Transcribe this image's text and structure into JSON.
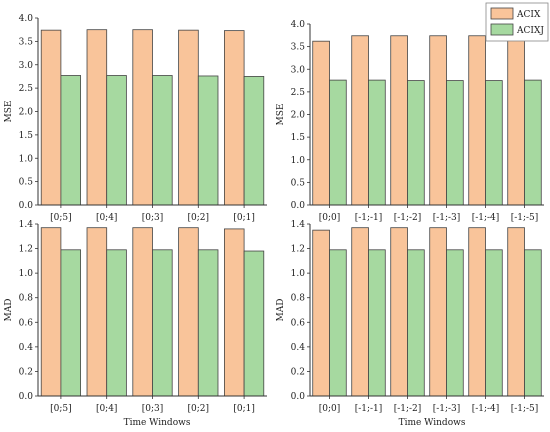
{
  "colors": {
    "ACIX": "#f9c49a",
    "ACIXJ": "#a6d9a0",
    "bar_edge": "#444444",
    "axis": "#333333"
  },
  "legend": [
    "ACIX",
    "ACIXJ"
  ],
  "chart_data": [
    {
      "type": "bar",
      "panel": "top-left",
      "ylabel": "MSE",
      "xlabel": "",
      "ylim": [
        0,
        4.0
      ],
      "yticks": [
        "0.0",
        "0.5",
        "1.0",
        "1.5",
        "2.0",
        "2.5",
        "3.0",
        "3.5",
        "4.0"
      ],
      "ytick_values": [
        0,
        0.5,
        1.0,
        1.5,
        2.0,
        2.5,
        3.0,
        3.5,
        4.0
      ],
      "categories": [
        "[0;5]",
        "[0;4]",
        "[0;3]",
        "[0;2]",
        "[0;1]"
      ],
      "series": [
        {
          "name": "ACIX",
          "values": [
            3.74,
            3.75,
            3.75,
            3.74,
            3.73
          ]
        },
        {
          "name": "ACIXJ",
          "values": [
            2.77,
            2.77,
            2.77,
            2.76,
            2.75
          ]
        }
      ]
    },
    {
      "type": "bar",
      "panel": "top-right",
      "ylabel": "MSE",
      "xlabel": "",
      "ylim": [
        0,
        4.0
      ],
      "yticks": [
        "0.0",
        "0.5",
        "1.0",
        "1.5",
        "2.0",
        "2.5",
        "3.0",
        "3.5",
        "4.0"
      ],
      "ytick_values": [
        0,
        0.5,
        1.0,
        1.5,
        2.0,
        2.5,
        3.0,
        3.5,
        4.0
      ],
      "categories": [
        "[0;0]",
        "[-1;-1]",
        "[-1;-2]",
        "[-1;-3]",
        "[-1;-4]",
        "[-1;-5]"
      ],
      "series": [
        {
          "name": "ACIX",
          "values": [
            3.62,
            3.74,
            3.74,
            3.74,
            3.74,
            3.74
          ]
        },
        {
          "name": "ACIXJ",
          "values": [
            2.76,
            2.76,
            2.75,
            2.75,
            2.75,
            2.76
          ]
        }
      ]
    },
    {
      "type": "bar",
      "panel": "bottom-left",
      "ylabel": "MAD",
      "xlabel": "Time Windows",
      "ylim": [
        0,
        1.4
      ],
      "yticks": [
        "0.0",
        "0.2",
        "0.4",
        "0.6",
        "0.8",
        "1.0",
        "1.2",
        "1.4"
      ],
      "ytick_values": [
        0,
        0.2,
        0.4,
        0.6,
        0.8,
        1.0,
        1.2,
        1.4
      ],
      "categories": [
        "[0;5]",
        "[0;4]",
        "[0;3]",
        "[0;2]",
        "[0;1]"
      ],
      "series": [
        {
          "name": "ACIX",
          "values": [
            1.37,
            1.37,
            1.37,
            1.37,
            1.36
          ]
        },
        {
          "name": "ACIXJ",
          "values": [
            1.19,
            1.19,
            1.19,
            1.19,
            1.18
          ]
        }
      ]
    },
    {
      "type": "bar",
      "panel": "bottom-right",
      "ylabel": "MAD",
      "xlabel": "Time Windows",
      "ylim": [
        0,
        1.4
      ],
      "yticks": [
        "0.0",
        "0.2",
        "0.4",
        "0.6",
        "0.8",
        "1.0",
        "1.2",
        "1.4"
      ],
      "ytick_values": [
        0,
        0.2,
        0.4,
        0.6,
        0.8,
        1.0,
        1.2,
        1.4
      ],
      "categories": [
        "[0;0]",
        "[-1;-1]",
        "[-1;-2]",
        "[-1;-3]",
        "[-1;-4]",
        "[-1;-5]"
      ],
      "series": [
        {
          "name": "ACIX",
          "values": [
            1.35,
            1.37,
            1.37,
            1.37,
            1.37,
            1.37
          ]
        },
        {
          "name": "ACIXJ",
          "values": [
            1.19,
            1.19,
            1.19,
            1.19,
            1.19,
            1.19
          ]
        }
      ]
    }
  ]
}
